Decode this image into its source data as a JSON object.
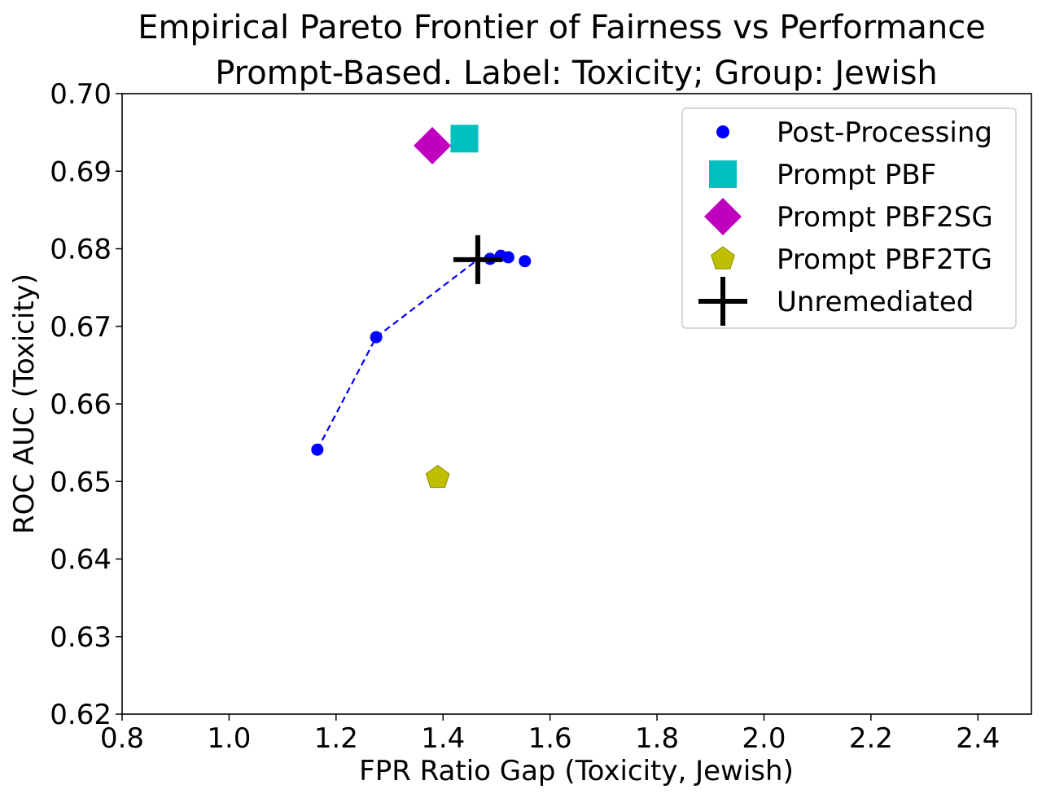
{
  "chart_data": {
    "type": "scatter",
    "title": [
      "Empirical Pareto Frontier of Fairness vs Performance",
      "Prompt-Based. Label: Toxicity; Group: Jewish"
    ],
    "xlabel": "FPR Ratio Gap (Toxicity, Jewish)",
    "ylabel": "ROC AUC (Toxicity)",
    "xlim": [
      0.8,
      2.5
    ],
    "ylim": [
      0.62,
      0.7
    ],
    "xticks": [
      0.8,
      1.0,
      1.2,
      1.4,
      1.6,
      1.8,
      2.0,
      2.2,
      2.4
    ],
    "xtick_labels": [
      "0.8",
      "1.0",
      "1.2",
      "1.4",
      "1.6",
      "1.8",
      "2.0",
      "2.2",
      "2.4"
    ],
    "yticks": [
      0.62,
      0.63,
      0.64,
      0.65,
      0.66,
      0.67,
      0.68,
      0.69,
      0.7
    ],
    "ytick_labels": [
      "0.62",
      "0.63",
      "0.64",
      "0.65",
      "0.66",
      "0.67",
      "0.68",
      "0.69",
      "0.70"
    ],
    "grid": false,
    "legend_position": "top-right",
    "series": [
      {
        "name": "Post-Processing",
        "marker": "circle",
        "color": "#0000ff",
        "points": [
          [
            1.165,
            0.6541
          ],
          [
            1.275,
            0.6686
          ],
          [
            1.488,
            0.6787
          ],
          [
            1.508,
            0.6791
          ],
          [
            1.522,
            0.6789
          ],
          [
            1.553,
            0.6784
          ]
        ]
      },
      {
        "name": "Prompt PBF",
        "marker": "square",
        "color": "#00bfbf",
        "points": [
          [
            1.44,
            0.6942
          ]
        ]
      },
      {
        "name": "Prompt PBF2SG",
        "marker": "diamond",
        "color": "#bf00bf",
        "points": [
          [
            1.38,
            0.6933
          ]
        ]
      },
      {
        "name": "Prompt PBF2TG",
        "marker": "pentagon",
        "color": "#bfbf00",
        "points": [
          [
            1.39,
            0.6505
          ]
        ]
      },
      {
        "name": "Unremediated",
        "marker": "plus",
        "color": "#000000",
        "points": [
          [
            1.465,
            0.6786
          ]
        ]
      }
    ],
    "pareto_line": {
      "style": "dashed",
      "color": "#0000ff",
      "points": [
        [
          1.165,
          0.6541
        ],
        [
          1.275,
          0.6686
        ],
        [
          1.465,
          0.6786
        ]
      ]
    }
  }
}
